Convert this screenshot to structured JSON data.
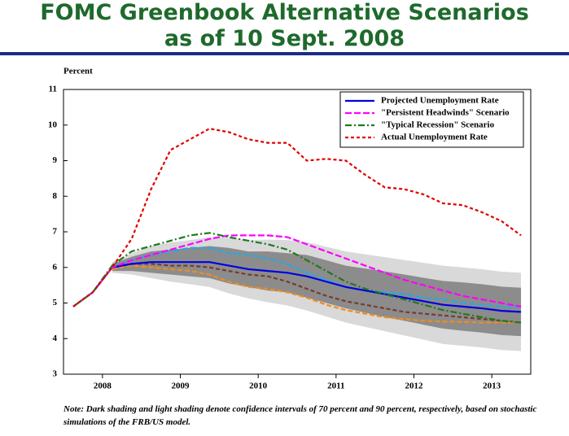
{
  "chart_data": {
    "type": "line",
    "title": [
      "FOMC Greenbook Alternative Scenarios",
      "as of 10 Sept. 2008"
    ],
    "y_label": "Percent",
    "note": "Note: Dark shading and light shading denote confidence intervals of 70 percent and 90 percent, respectively, based on stochastic simulations of the FRB/US model.",
    "x": [
      2008.125,
      2008.375,
      2008.625,
      2008.875,
      2009.125,
      2009.375,
      2009.625,
      2009.875,
      2010.125,
      2010.375,
      2010.625,
      2010.875,
      2011.125,
      2011.375,
      2011.625,
      2011.875,
      2012.125,
      2012.375,
      2012.625,
      2012.875,
      2013.125,
      2013.375,
      2013.625,
      2013.875
    ],
    "xlim": [
      2008,
      2014
    ],
    "xticks": [
      {
        "value": 2008.5,
        "label": "2008"
      },
      {
        "value": 2009.5,
        "label": "2009"
      },
      {
        "value": 2010.5,
        "label": "2010"
      },
      {
        "value": 2011.5,
        "label": "2011"
      },
      {
        "value": 2012.5,
        "label": "2012"
      },
      {
        "value": 2013.5,
        "label": "2013"
      }
    ],
    "ylim": [
      3,
      11
    ],
    "yticks": [
      3,
      4,
      5,
      6,
      7,
      8,
      9,
      10,
      11
    ],
    "legend": "upper right",
    "bands": [
      {
        "color": "#d9d9d9",
        "lower": [
          null,
          null,
          5.85,
          5.8,
          5.7,
          5.6,
          5.53,
          5.45,
          5.27,
          5.13,
          5.02,
          4.93,
          4.79,
          4.62,
          4.45,
          4.33,
          4.21,
          4.09,
          3.97,
          3.85,
          3.8,
          3.75,
          3.68,
          3.65
        ],
        "upper": [
          null,
          null,
          6.15,
          6.4,
          6.6,
          6.7,
          6.77,
          6.85,
          6.83,
          6.77,
          6.78,
          6.77,
          6.71,
          6.58,
          6.45,
          6.37,
          6.29,
          6.21,
          6.13,
          6.05,
          6.0,
          5.95,
          5.88,
          5.85
        ]
      },
      {
        "color": "#8c8c8c",
        "lower": [
          null,
          null,
          5.9,
          5.9,
          5.85,
          5.8,
          5.75,
          5.7,
          5.55,
          5.45,
          5.35,
          5.3,
          5.15,
          5.0,
          4.85,
          4.73,
          4.61,
          4.5,
          4.39,
          4.28,
          4.22,
          4.17,
          4.1,
          4.07
        ],
        "upper": [
          null,
          null,
          6.1,
          6.3,
          6.45,
          6.5,
          6.55,
          6.6,
          6.55,
          6.45,
          6.45,
          6.4,
          6.35,
          6.2,
          6.05,
          5.97,
          5.89,
          5.8,
          5.71,
          5.62,
          5.58,
          5.53,
          5.46,
          5.43
        ]
      }
    ],
    "series": [
      {
        "color": "#7a3b2e",
        "dash": "5,3",
        "values": [
          null,
          null,
          6.0,
          6.1,
          6.1,
          6.05,
          6.05,
          6.0,
          5.9,
          5.8,
          5.75,
          5.6,
          5.4,
          5.2,
          5.05,
          4.95,
          4.85,
          4.75,
          4.7,
          4.65,
          4.6,
          4.55,
          4.5,
          4.45
        ]
      },
      {
        "color": "#f08c1e",
        "dash": "6,3",
        "values": [
          null,
          null,
          5.95,
          6.05,
          6.0,
          5.95,
          5.9,
          5.8,
          5.6,
          5.45,
          5.4,
          5.3,
          5.15,
          4.95,
          4.8,
          4.7,
          4.6,
          4.55,
          4.5,
          4.48,
          4.47,
          4.45,
          4.45,
          4.45
        ]
      },
      {
        "color": "#2aa7e0",
        "dash": "8,3",
        "values": [
          null,
          null,
          6.0,
          6.2,
          6.35,
          6.45,
          6.55,
          6.55,
          6.4,
          6.35,
          6.25,
          6.1,
          5.85,
          5.65,
          5.45,
          5.35,
          5.3,
          5.25,
          5.15,
          5.1,
          5.0,
          4.95,
          4.9,
          4.9
        ]
      },
      {
        "name": "Projected Unemployment Rate",
        "color": "#0000e0",
        "dash": "",
        "values": [
          4.9,
          5.3,
          6.0,
          6.1,
          6.15,
          6.15,
          6.15,
          6.15,
          6.05,
          5.95,
          5.9,
          5.85,
          5.75,
          5.6,
          5.45,
          5.35,
          5.25,
          5.15,
          5.05,
          4.95,
          4.9,
          4.85,
          4.78,
          4.75
        ]
      },
      {
        "name": "\"Persistent Headwinds\" Scenario",
        "color": "#ff00ff",
        "dash": "8,3",
        "values": [
          4.9,
          5.3,
          6.0,
          6.2,
          6.35,
          6.5,
          6.65,
          6.8,
          6.9,
          6.9,
          6.9,
          6.85,
          6.65,
          6.45,
          6.25,
          6.05,
          5.85,
          5.65,
          5.5,
          5.35,
          5.2,
          5.1,
          5.0,
          4.9
        ]
      },
      {
        "name": "\"Typical Recession\" Scenario",
        "color": "#1e7a1e",
        "dash": "8,3,2,3",
        "values": [
          4.9,
          5.3,
          6.05,
          6.45,
          6.6,
          6.75,
          6.9,
          6.97,
          6.85,
          6.75,
          6.65,
          6.5,
          6.2,
          5.9,
          5.6,
          5.4,
          5.25,
          5.1,
          4.95,
          4.8,
          4.7,
          4.6,
          4.5,
          4.45
        ]
      },
      {
        "name": "Actual Unemployment Rate",
        "color": "#e00000",
        "dash": "4,3",
        "values": [
          4.9,
          5.3,
          6.0,
          6.8,
          8.2,
          9.3,
          9.6,
          9.9,
          9.8,
          9.6,
          9.5,
          9.5,
          9.0,
          9.05,
          9.0,
          8.6,
          8.25,
          8.2,
          8.05,
          7.8,
          7.75,
          7.55,
          7.3,
          6.9
        ]
      }
    ]
  }
}
